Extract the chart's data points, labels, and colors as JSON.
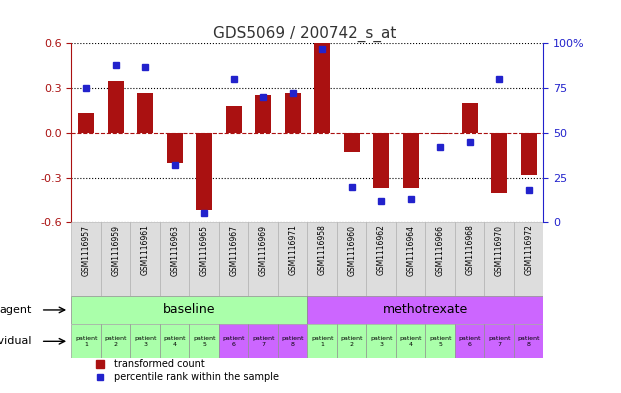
{
  "title": "GDS5069 / 200742_s_at",
  "samples": [
    "GSM1116957",
    "GSM1116959",
    "GSM1116961",
    "GSM1116963",
    "GSM1116965",
    "GSM1116967",
    "GSM1116969",
    "GSM1116971",
    "GSM1116958",
    "GSM1116960",
    "GSM1116962",
    "GSM1116964",
    "GSM1116966",
    "GSM1116968",
    "GSM1116970",
    "GSM1116972"
  ],
  "bar_values": [
    0.13,
    0.35,
    0.27,
    -0.2,
    -0.52,
    0.18,
    0.25,
    0.27,
    0.6,
    -0.13,
    -0.37,
    -0.37,
    -0.01,
    0.2,
    -0.4,
    -0.28
  ],
  "dot_values": [
    75,
    88,
    87,
    32,
    5,
    80,
    70,
    72,
    97,
    20,
    12,
    13,
    42,
    45,
    80,
    18
  ],
  "ylim": [
    -0.6,
    0.6
  ],
  "y2lim": [
    0,
    100
  ],
  "yticks": [
    -0.6,
    -0.3,
    0.0,
    0.3,
    0.6
  ],
  "y2ticks": [
    0,
    25,
    50,
    75,
    100
  ],
  "bar_color": "#aa1111",
  "dot_color": "#2222cc",
  "bar_width": 0.55,
  "agent_groups": [
    {
      "label": "baseline",
      "start": 0,
      "end": 8,
      "color": "#aaffaa"
    },
    {
      "label": "methotrexate",
      "start": 8,
      "end": 16,
      "color": "#cc66ff"
    }
  ],
  "indiv_colors": [
    "#aaffaa",
    "#aaffaa",
    "#aaffaa",
    "#aaffaa",
    "#aaffaa",
    "#cc66ff",
    "#cc66ff",
    "#cc66ff",
    "#aaffaa",
    "#aaffaa",
    "#aaffaa",
    "#aaffaa",
    "#aaffaa",
    "#cc66ff",
    "#cc66ff",
    "#cc66ff"
  ],
  "individual_labels": [
    "patient\n1",
    "patient\n2",
    "patient\n3",
    "patient\n4",
    "patient\n5",
    "patient\n6",
    "patient\n7",
    "patient\n8",
    "patient\n1",
    "patient\n2",
    "patient\n3",
    "patient\n4",
    "patient\n5",
    "patient\n6",
    "patient\n7",
    "patient\n8"
  ],
  "legend_bar_label": "transformed count",
  "legend_dot_label": "percentile rank within the sample",
  "red_hline_y": 0.0,
  "background_color": "#ffffff",
  "sample_label_fontsize": 5.5,
  "title_fontsize": 11
}
